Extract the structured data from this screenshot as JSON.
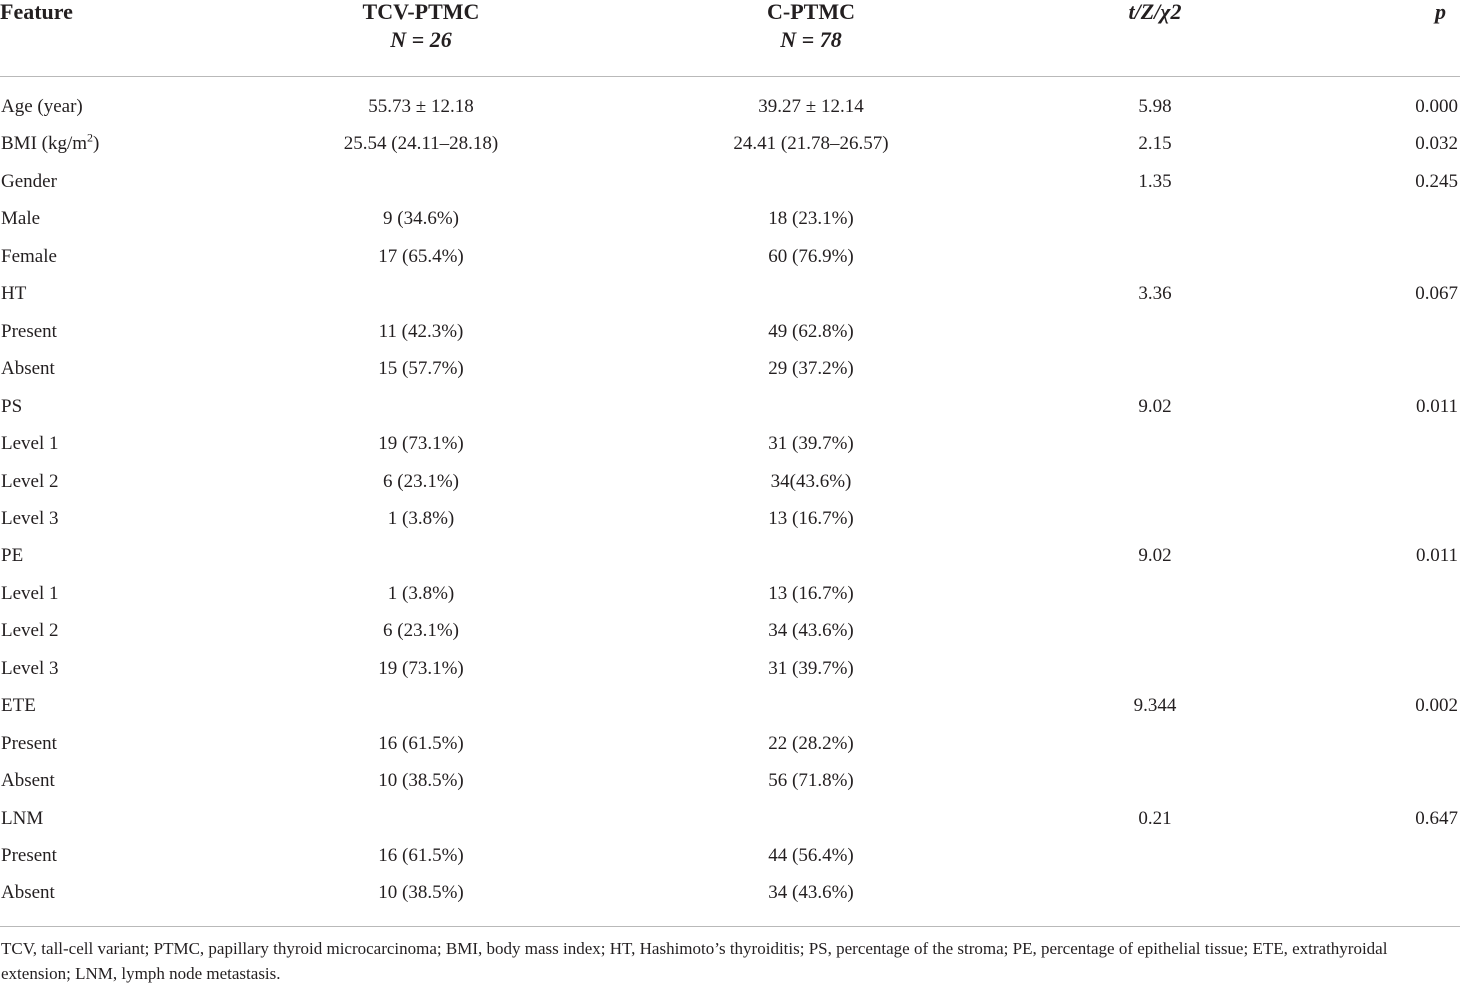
{
  "header": {
    "feature": "Feature",
    "group1_name": "TCV-PTMC",
    "group1_n": "N = 26",
    "group2_name": "C-PTMC",
    "group2_n": "N = 78",
    "stat": "t/Z/χ2",
    "p": "p"
  },
  "rows": [
    {
      "feature": "Age (year)",
      "g1": "55.73 ± 12.18",
      "g2": "39.27 ± 12.14",
      "stat": "5.98",
      "p": "0.000"
    },
    {
      "feature": "BMI (kg/m",
      "feature_sup": "2",
      "feature_tail": ")",
      "g1": "25.54 (24.11–28.18)",
      "g2": "24.41 (21.78–26.57)",
      "stat": "2.15",
      "p": "0.032"
    },
    {
      "feature": "Gender",
      "g1": "",
      "g2": "",
      "stat": "1.35",
      "p": "0.245"
    },
    {
      "feature": "Male",
      "g1": "9 (34.6%)",
      "g2": "18 (23.1%)",
      "stat": "",
      "p": ""
    },
    {
      "feature": "Female",
      "g1": "17 (65.4%)",
      "g2": "60 (76.9%)",
      "stat": "",
      "p": ""
    },
    {
      "feature": "HT",
      "g1": "",
      "g2": "",
      "stat": "3.36",
      "p": "0.067"
    },
    {
      "feature": "Present",
      "g1": "11 (42.3%)",
      "g2": "49 (62.8%)",
      "stat": "",
      "p": ""
    },
    {
      "feature": "Absent",
      "g1": "15 (57.7%)",
      "g2": "29 (37.2%)",
      "stat": "",
      "p": ""
    },
    {
      "feature": "PS",
      "g1": "",
      "g2": "",
      "stat": "9.02",
      "p": "0.011"
    },
    {
      "feature": "Level 1",
      "g1": "19 (73.1%)",
      "g2": "31 (39.7%)",
      "stat": "",
      "p": ""
    },
    {
      "feature": "Level 2",
      "g1": "6 (23.1%)",
      "g2": "34(43.6%)",
      "stat": "",
      "p": ""
    },
    {
      "feature": "Level 3",
      "g1": "1 (3.8%)",
      "g2": "13 (16.7%)",
      "stat": "",
      "p": ""
    },
    {
      "feature": "PE",
      "g1": "",
      "g2": "",
      "stat": "9.02",
      "p": "0.011"
    },
    {
      "feature": "Level 1",
      "g1": "1 (3.8%)",
      "g2": "13 (16.7%)",
      "stat": "",
      "p": ""
    },
    {
      "feature": "Level 2",
      "g1": "6 (23.1%)",
      "g2": "34 (43.6%)",
      "stat": "",
      "p": ""
    },
    {
      "feature": "Level 3",
      "g1": "19 (73.1%)",
      "g2": "31 (39.7%)",
      "stat": "",
      "p": ""
    },
    {
      "feature": "ETE",
      "g1": "",
      "g2": "",
      "stat": "9.344",
      "p": "0.002"
    },
    {
      "feature": "Present",
      "g1": "16 (61.5%)",
      "g2": "22 (28.2%)",
      "stat": "",
      "p": ""
    },
    {
      "feature": "Absent",
      "g1": "10 (38.5%)",
      "g2": "56 (71.8%)",
      "stat": "",
      "p": ""
    },
    {
      "feature": "LNM",
      "g1": "",
      "g2": "",
      "stat": "0.21",
      "p": "0.647"
    },
    {
      "feature": "Present",
      "g1": "16 (61.5%)",
      "g2": "44 (56.4%)",
      "stat": "",
      "p": ""
    },
    {
      "feature": "Absent",
      "g1": "10 (38.5%)",
      "g2": "34 (43.6%)",
      "stat": "",
      "p": ""
    }
  ],
  "footnote": "TCV, tall-cell variant; PTMC, papillary thyroid microcarcinoma; BMI, body mass index; HT, Hashimoto’s thyroiditis; PS, percentage of the stroma; PE, percentage of epithelial tissue; ETE, extrathyroidal extension; LNM, lymph node metastasis."
}
